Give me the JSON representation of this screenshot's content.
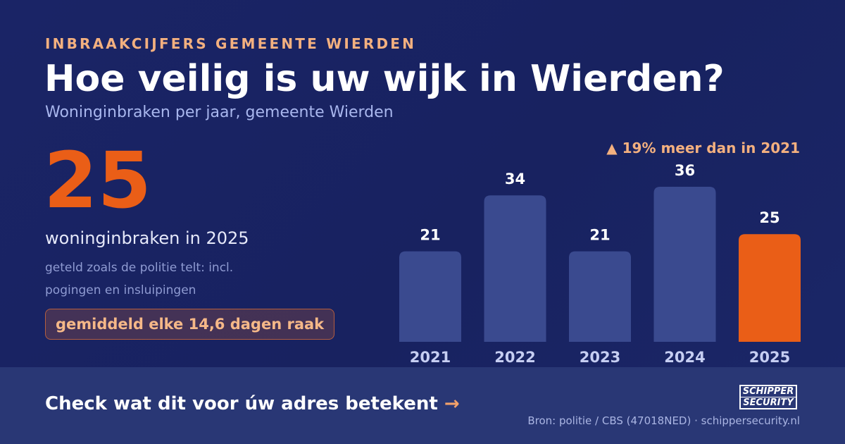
{
  "header": {
    "kicker": "INBRAAKCIJFERS GEMEENTE WIERDEN",
    "title": "Hoe veilig is uw wijk in Wierden?",
    "subtitle": "Woninginbraken per jaar, gemeente Wierden"
  },
  "highlight": {
    "number": "25",
    "label": "woninginbraken in 2025",
    "note": "geteld zoals de politie telt: incl. pogingen en insluipingen",
    "badge": "gemiddeld elke 14,6 dagen raak"
  },
  "callout": "▲ 19% meer dan in 2021",
  "chart_data": {
    "type": "bar",
    "categories": [
      "2021",
      "2022",
      "2023",
      "2024",
      "2025"
    ],
    "values": [
      21,
      34,
      21,
      36,
      25
    ],
    "data_labels": [
      "21",
      "34",
      "21",
      "36",
      "25"
    ],
    "highlight_index": 4,
    "ylim": [
      0,
      36
    ],
    "grid": false,
    "title": "",
    "xlabel": "",
    "ylabel": ""
  },
  "colors": {
    "background": "#1a2466",
    "bar": "#3a4a8f",
    "bar_highlight": "#ea5e17",
    "accent": "#f3b07f",
    "footer": "#293775"
  },
  "footer": {
    "cta_text": "Check wat dit voor úw adres betekent",
    "cta_arrow": "→",
    "logo_line1": "SCHIPPER",
    "logo_line2": "SECURITY",
    "source": "Bron: politie / CBS (47018NED) · schippersecurity.nl"
  }
}
